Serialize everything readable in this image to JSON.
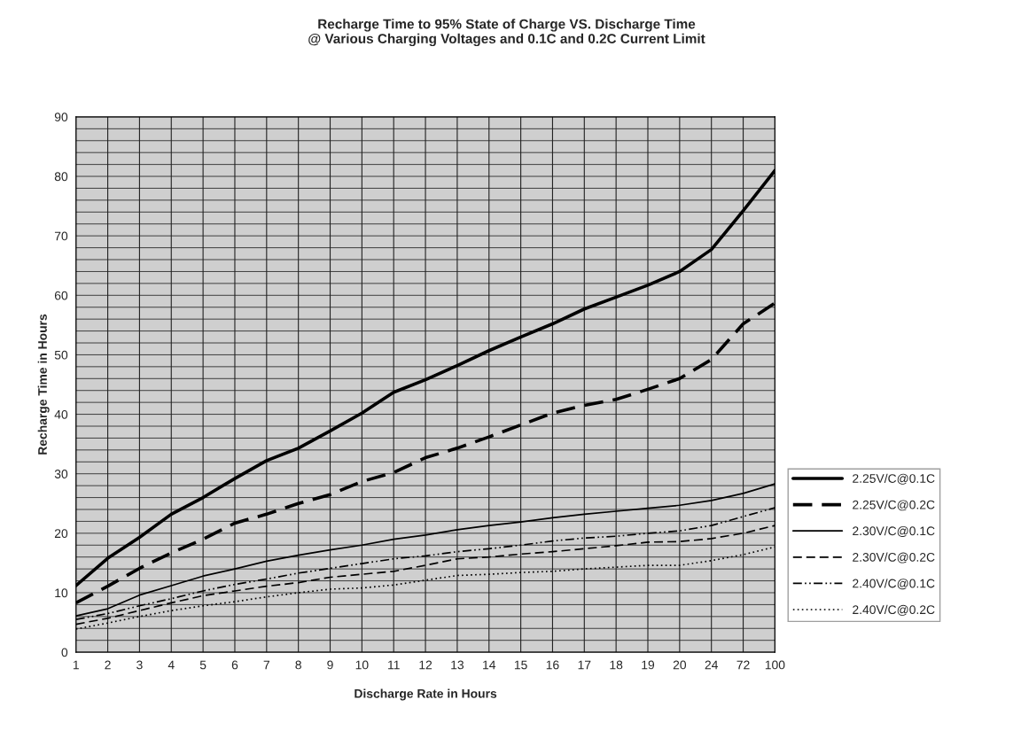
{
  "chart_data": {
    "type": "line",
    "title": "Recharge Time to 95% State of Charge VS. Discharge Time\n@ Various Charging Voltages and 0.1C and 0.2C Current Limit",
    "xlabel": "Discharge Rate in Hours",
    "ylabel": "Recharge Time in Hours",
    "categories": [
      "1",
      "2",
      "3",
      "4",
      "5",
      "6",
      "7",
      "8",
      "9",
      "10",
      "11",
      "12",
      "13",
      "14",
      "15",
      "16",
      "17",
      "18",
      "19",
      "20",
      "24",
      "72",
      "100"
    ],
    "ylim": [
      0,
      90
    ],
    "yticks": [
      0,
      10,
      20,
      30,
      40,
      50,
      60,
      70,
      80,
      90
    ],
    "grid": true,
    "legend": "right",
    "marker": "none",
    "series": [
      {
        "name": "2.25V/C@0.1C",
        "color": "#000000",
        "line_style": "solid",
        "values": [
          11.2,
          15.8,
          19.3,
          23.2,
          26,
          29.2,
          32.2,
          34.3,
          37.2,
          40.2,
          43.7,
          45.8,
          48.2,
          50.7,
          53,
          55.2,
          57.7,
          59.7,
          61.7,
          64,
          67.7,
          74.2,
          81
        ]
      },
      {
        "name": "2.25V/C@0.2C",
        "color": "#000000",
        "line_style": "dashed",
        "values": [
          8.3,
          11.1,
          14.1,
          16.7,
          19,
          21.7,
          23.2,
          25,
          26.5,
          28.7,
          30.2,
          32.7,
          34.3,
          36.2,
          38.2,
          40.2,
          41.5,
          42.5,
          44.2,
          46,
          49.2,
          55.2,
          58.7
        ]
      },
      {
        "name": "2.30V/C@0.1C",
        "color": "#000000",
        "line_style": "solid",
        "values": [
          6.1,
          7.3,
          9.6,
          11.2,
          12.8,
          14,
          15.3,
          16.3,
          17.2,
          18,
          19,
          19.7,
          20.6,
          21.3,
          21.9,
          22.6,
          23.2,
          23.7,
          24.2,
          24.7,
          25.5,
          26.7,
          28.3
        ]
      },
      {
        "name": "2.30V/C@0.2C",
        "color": "#000000",
        "line_style": "dashed",
        "values": [
          4.7,
          5.7,
          7,
          8.3,
          9.5,
          10.3,
          11.1,
          11.7,
          12.6,
          13.1,
          13.6,
          14.6,
          15.7,
          16,
          16.5,
          16.9,
          17.4,
          17.9,
          18.5,
          18.6,
          19.1,
          20,
          21.3
        ]
      },
      {
        "name": "2.40V/C@0.1C",
        "color": "#000000",
        "line_style": "dashdotdot",
        "values": [
          5.5,
          6.5,
          7.8,
          9,
          10.3,
          11.4,
          12.3,
          13.3,
          14.1,
          14.9,
          15.7,
          16.2,
          16.9,
          17.4,
          18,
          18.7,
          19.2,
          19.5,
          20,
          20.4,
          21.3,
          22.8,
          24.3
        ]
      },
      {
        "name": "2.40V/C@0.2C",
        "color": "#000000",
        "line_style": "dotted",
        "values": [
          3.9,
          4.9,
          6,
          7,
          7.8,
          8.5,
          9.3,
          10,
          10.6,
          10.8,
          11.3,
          12.1,
          12.9,
          13.1,
          13.4,
          13.6,
          14,
          14.3,
          14.6,
          14.6,
          15.4,
          16.4,
          17.7
        ]
      }
    ]
  }
}
